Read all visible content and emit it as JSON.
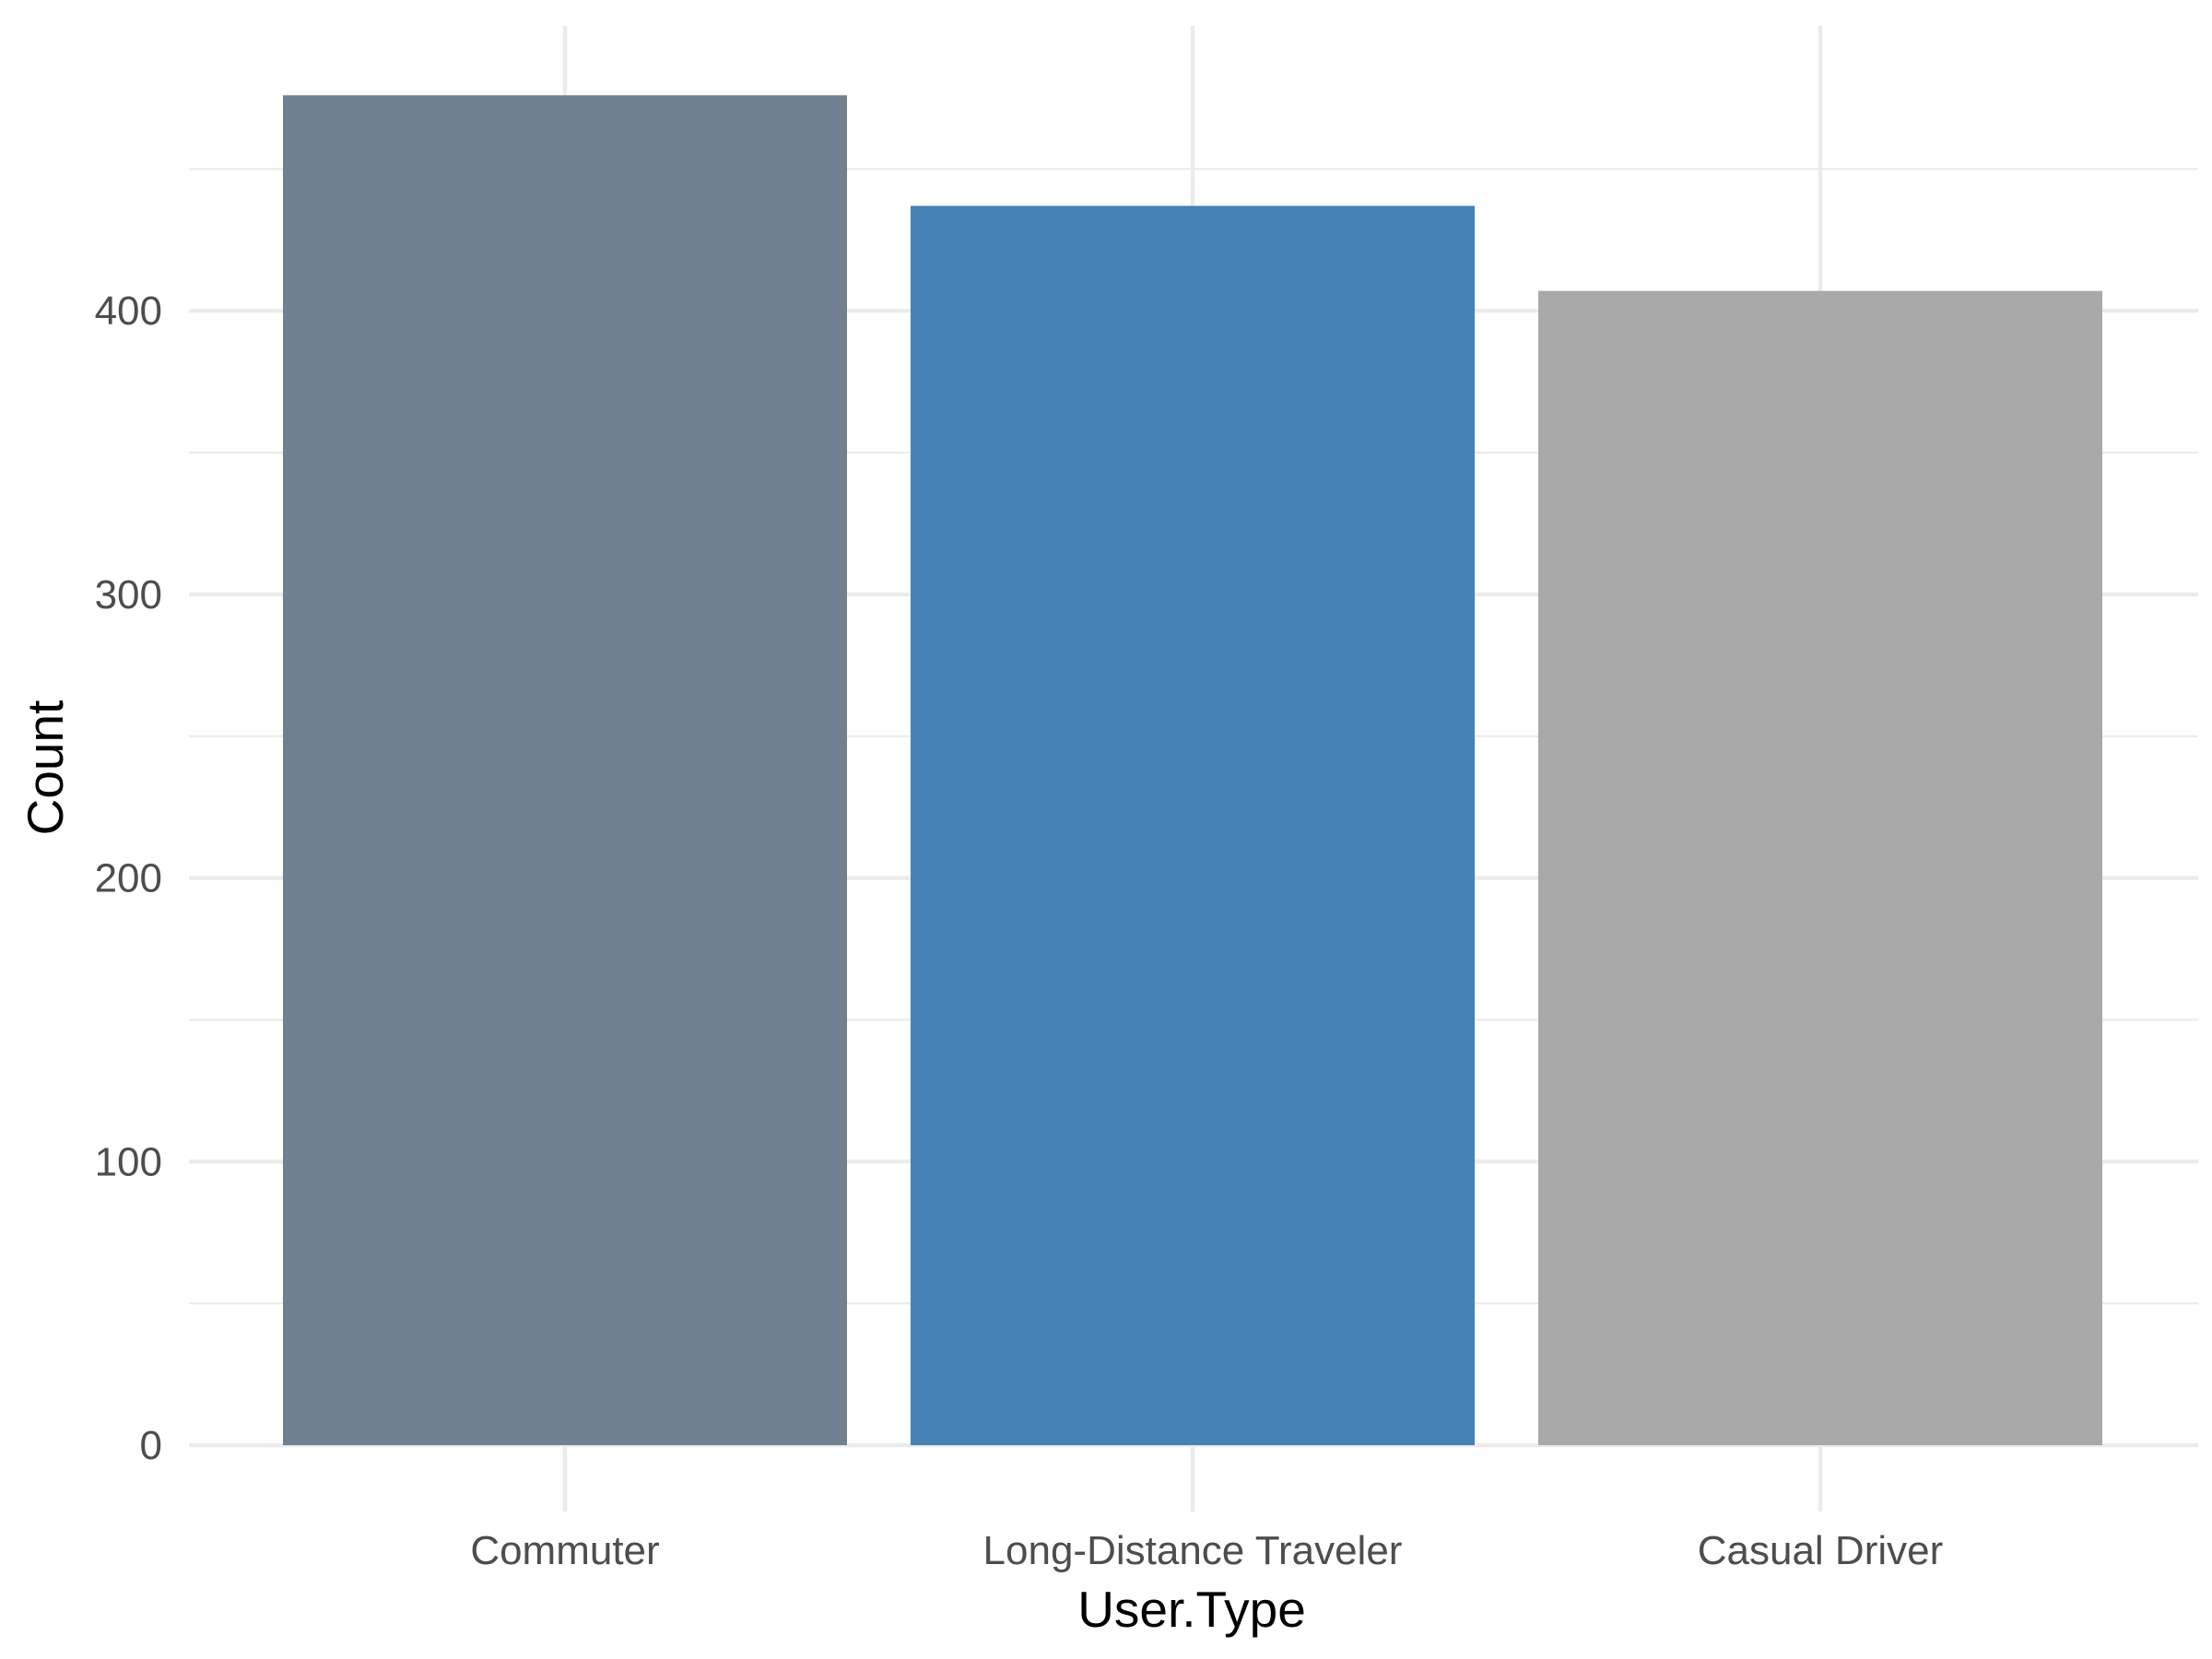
{
  "chart_data": {
    "type": "bar",
    "title": "",
    "xlabel": "User.Type",
    "ylabel": "Count",
    "categories": [
      "Commuter",
      "Long-Distance Traveler",
      "Casual Driver"
    ],
    "values": [
      476,
      437,
      407
    ],
    "colors": [
      "#708090",
      "#4682B4",
      "#A9A9A9"
    ],
    "ylim": [
      0,
      500
    ],
    "yticks": [
      0,
      100,
      200,
      300,
      400
    ],
    "ytick_labels": [
      "0",
      "100",
      "200",
      "300",
      "400"
    ],
    "grid": true,
    "legend": "none"
  }
}
